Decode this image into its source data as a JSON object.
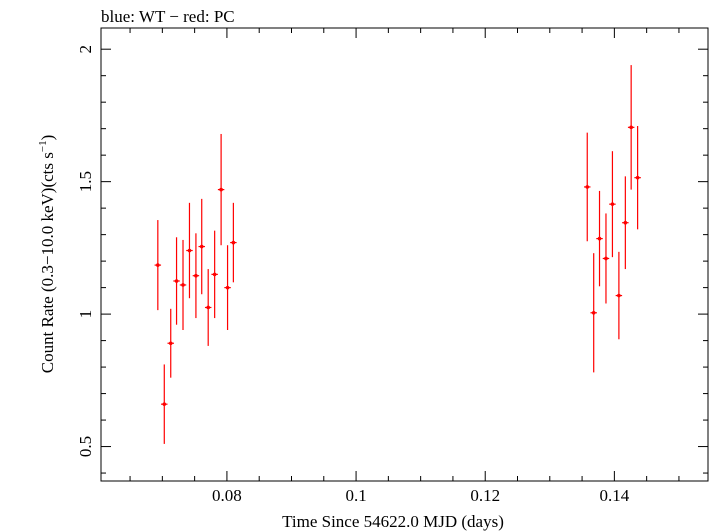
{
  "chart_data": {
    "type": "scatter",
    "title": "blue: WT − red: PC",
    "xlabel": "Time Since 54622.0 MJD (days)",
    "ylabel_parts": [
      "Count Rate (0.3−10.0 keV)(cts s",
      "−1",
      ")"
    ],
    "xlim": [
      0.0605,
      0.1545
    ],
    "ylim": [
      0.37,
      2.08
    ],
    "xticks": [
      0.08,
      0.1,
      0.12,
      0.14
    ],
    "xtick_labels": [
      "0.08",
      "0.1",
      "0.12",
      "0.14"
    ],
    "yticks": [
      0.5,
      1.0,
      1.5,
      2.0
    ],
    "ytick_labels": [
      "0.5",
      "1",
      "1.5",
      "2"
    ],
    "x_minor_step": 0.005,
    "y_minor_step": 0.1,
    "grid": false,
    "series": [
      {
        "color": "#ff0000",
        "points": [
          {
            "x": 0.0693,
            "y": 1.185,
            "xerr": 0.0005,
            "yerr": 0.17
          },
          {
            "x": 0.0703,
            "y": 0.66,
            "xerr": 0.0005,
            "yerr": 0.15
          },
          {
            "x": 0.0713,
            "y": 0.89,
            "xerr": 0.0005,
            "yerr": 0.13
          },
          {
            "x": 0.0722,
            "y": 1.125,
            "xerr": 0.0005,
            "yerr": 0.165
          },
          {
            "x": 0.0732,
            "y": 1.11,
            "xerr": 0.0005,
            "yerr": 0.17
          },
          {
            "x": 0.0742,
            "y": 1.24,
            "xerr": 0.0005,
            "yerr": 0.18
          },
          {
            "x": 0.0752,
            "y": 1.145,
            "xerr": 0.0005,
            "yerr": 0.16
          },
          {
            "x": 0.0761,
            "y": 1.255,
            "xerr": 0.0005,
            "yerr": 0.18
          },
          {
            "x": 0.0771,
            "y": 1.025,
            "xerr": 0.0005,
            "yerr": 0.145
          },
          {
            "x": 0.0781,
            "y": 1.15,
            "xerr": 0.0005,
            "yerr": 0.165
          },
          {
            "x": 0.0791,
            "y": 1.47,
            "xerr": 0.0005,
            "yerr": 0.21
          },
          {
            "x": 0.0801,
            "y": 1.1,
            "xerr": 0.0005,
            "yerr": 0.16
          },
          {
            "x": 0.081,
            "y": 1.27,
            "xerr": 0.0005,
            "yerr": 0.15
          },
          {
            "x": 0.1358,
            "y": 1.48,
            "xerr": 0.0005,
            "yerr": 0.205
          },
          {
            "x": 0.1368,
            "y": 1.005,
            "xerr": 0.0005,
            "yerr": 0.225
          },
          {
            "x": 0.1377,
            "y": 1.285,
            "xerr": 0.0005,
            "yerr": 0.18
          },
          {
            "x": 0.1387,
            "y": 1.21,
            "xerr": 0.0005,
            "yerr": 0.17
          },
          {
            "x": 0.1397,
            "y": 1.415,
            "xerr": 0.0005,
            "yerr": 0.2
          },
          {
            "x": 0.1407,
            "y": 1.07,
            "xerr": 0.0005,
            "yerr": 0.165
          },
          {
            "x": 0.1417,
            "y": 1.345,
            "xerr": 0.0005,
            "yerr": 0.175
          },
          {
            "x": 0.1426,
            "y": 1.705,
            "xerr": 0.0005,
            "yerr": 0.235
          },
          {
            "x": 0.1436,
            "y": 1.515,
            "xerr": 0.0005,
            "yerr": 0.195
          }
        ]
      }
    ]
  }
}
